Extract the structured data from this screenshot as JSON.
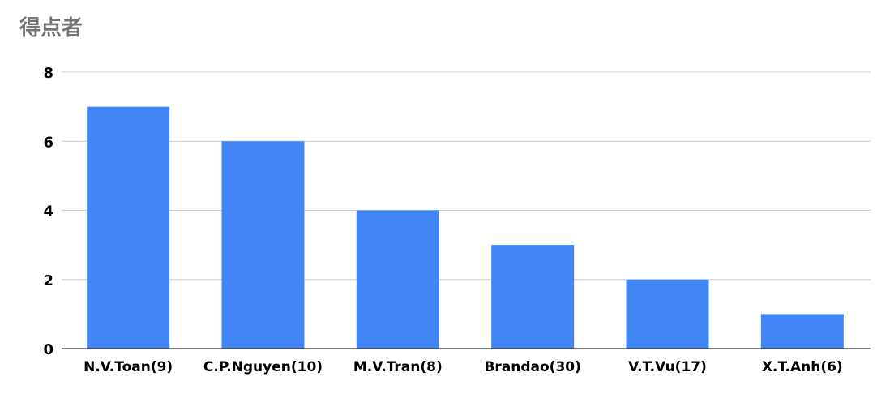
{
  "chart_data": {
    "type": "bar",
    "title": "得点者",
    "xlabel": "",
    "ylabel": "",
    "categories": [
      "N.V.Toan(9)",
      "C.P.Nguyen(10)",
      "M.V.Tran(8)",
      "Brandao(30)",
      "V.T.Vu(17)",
      "X.T.Anh(6)"
    ],
    "series": [
      {
        "values": [
          7,
          6,
          4,
          3,
          2,
          1
        ]
      }
    ],
    "ylim": [
      0,
      8
    ],
    "yticks": [
      0,
      2,
      4,
      6,
      8
    ],
    "grid": true,
    "legend": "none",
    "colors": {
      "bar": "#4285f4",
      "grid": "#cccccc",
      "axis": "#333333",
      "title": "#757575"
    }
  }
}
